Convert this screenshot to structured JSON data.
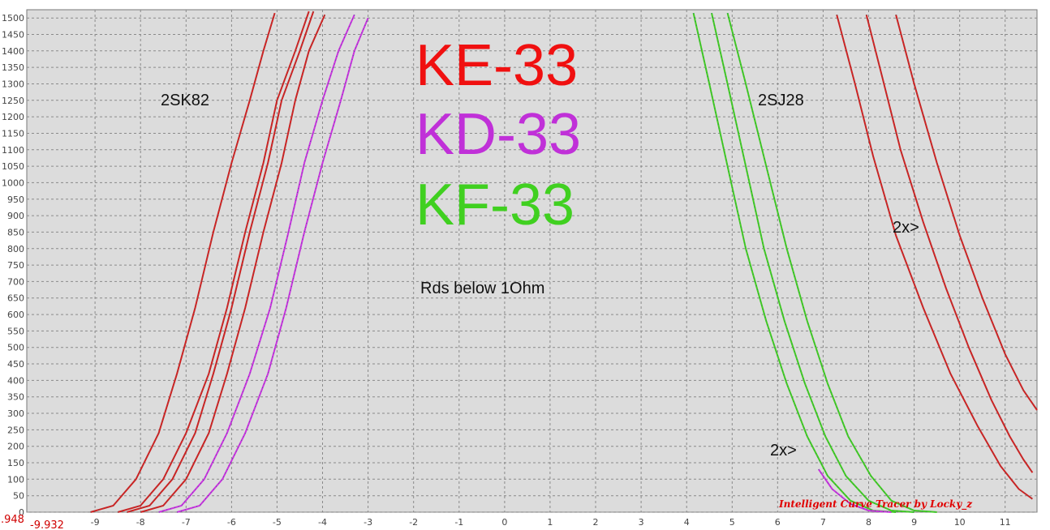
{
  "chart_data": {
    "type": "line",
    "title": "",
    "xlabel": "",
    "ylabel": "",
    "xlim": [
      -10.5,
      11.7
    ],
    "ylim": [
      0,
      1525
    ],
    "grid": true,
    "x_ticks": [
      -9,
      -8,
      -7,
      -6,
      -5,
      -4,
      -3,
      -2,
      -1,
      0,
      1,
      2,
      3,
      4,
      5,
      6,
      7,
      8,
      9,
      10,
      11
    ],
    "y_ticks": [
      0,
      50,
      100,
      150,
      200,
      250,
      300,
      350,
      400,
      450,
      500,
      550,
      600,
      650,
      700,
      750,
      800,
      850,
      900,
      950,
      1000,
      1050,
      1100,
      1150,
      1200,
      1250,
      1300,
      1350,
      1400,
      1450,
      1500
    ],
    "corner_labels": {
      "y_origin": ".948",
      "x_origin": "-9.932"
    },
    "legend": [
      {
        "name": "KE-33",
        "color": "#f01010"
      },
      {
        "name": "KD-33",
        "color": "#c030d8"
      },
      {
        "name": "KF-33",
        "color": "#40d020"
      }
    ],
    "annotations": {
      "device_left": "2SK82",
      "device_right": "2SJ28",
      "note": "Rds  below 1Ohm",
      "scale_mark_1": "2x>",
      "scale_mark_2": "2x>",
      "credit": "Intelligent Curve Tracer by Locky_z"
    },
    "series": [
      {
        "color": "#d42020",
        "x": [
          -9.1,
          -8.6,
          -8.1,
          -7.6,
          -7.2,
          -6.8,
          -6.4,
          -6.0,
          -5.6,
          -5.3,
          -5.05
        ],
        "y": [
          0,
          20,
          100,
          240,
          420,
          620,
          850,
          1060,
          1250,
          1400,
          1515
        ]
      },
      {
        "color": "#d42020",
        "x": [
          -8.5,
          -8.0,
          -7.5,
          -7.0,
          -6.5,
          -6.1,
          -5.7,
          -5.3,
          -5.0,
          -4.6,
          -4.3
        ],
        "y": [
          0,
          20,
          100,
          240,
          420,
          620,
          850,
          1060,
          1250,
          1400,
          1520
        ]
      },
      {
        "color": "#d42020",
        "x": [
          -8.3,
          -7.8,
          -7.3,
          -6.8,
          -6.4,
          -6.0,
          -5.6,
          -5.2,
          -4.9,
          -4.5,
          -4.2
        ],
        "y": [
          0,
          20,
          100,
          240,
          420,
          620,
          850,
          1060,
          1250,
          1400,
          1520
        ]
      },
      {
        "color": "#d42020",
        "x": [
          -8.0,
          -7.5,
          -7.0,
          -6.5,
          -6.1,
          -5.7,
          -5.3,
          -4.9,
          -4.6,
          -4.3,
          -3.95
        ],
        "y": [
          0,
          20,
          100,
          240,
          420,
          620,
          850,
          1060,
          1250,
          1400,
          1510
        ]
      },
      {
        "color": "#cc33e0",
        "x": [
          -7.6,
          -7.1,
          -6.6,
          -6.1,
          -5.6,
          -5.15,
          -4.75,
          -4.4,
          -4.0,
          -3.65,
          -3.3
        ],
        "y": [
          0,
          20,
          100,
          240,
          420,
          620,
          850,
          1060,
          1250,
          1400,
          1510
        ]
      },
      {
        "color": "#cc33e0",
        "x": [
          -7.2,
          -6.7,
          -6.2,
          -5.7,
          -5.2,
          -4.8,
          -4.4,
          -4.0,
          -3.6,
          -3.3,
          -3.0
        ],
        "y": [
          0,
          20,
          100,
          240,
          420,
          620,
          850,
          1060,
          1250,
          1400,
          1500
        ]
      },
      {
        "color": "#44cc22",
        "x": [
          4.15,
          4.5,
          4.9,
          5.3,
          5.75,
          6.2,
          6.65,
          7.1,
          7.6,
          8.1,
          8.6
        ],
        "y": [
          1515,
          1300,
          1050,
          800,
          580,
          390,
          230,
          110,
          35,
          5,
          0
        ]
      },
      {
        "color": "#44cc22",
        "x": [
          4.55,
          4.9,
          5.3,
          5.7,
          6.15,
          6.6,
          7.05,
          7.5,
          8.0,
          8.5,
          9.0
        ],
        "y": [
          1515,
          1300,
          1050,
          800,
          580,
          390,
          230,
          110,
          35,
          5,
          0
        ]
      },
      {
        "color": "#44cc22",
        "x": [
          4.9,
          5.3,
          5.75,
          6.2,
          6.65,
          7.1,
          7.55,
          8.05,
          8.5,
          9.0,
          9.5
        ],
        "y": [
          1515,
          1300,
          1050,
          800,
          580,
          390,
          230,
          110,
          35,
          5,
          0
        ]
      },
      {
        "color": "#cc33e0",
        "x": [
          6.9,
          7.2,
          7.6,
          8.0,
          8.5
        ],
        "y": [
          130,
          70,
          25,
          5,
          0
        ]
      },
      {
        "color": "#d42020",
        "x": [
          7.3,
          7.7,
          8.1,
          8.6,
          9.2,
          9.8,
          10.4,
          10.9,
          11.3,
          11.6
        ],
        "y": [
          1510,
          1300,
          1080,
          840,
          620,
          420,
          260,
          140,
          70,
          40
        ]
      },
      {
        "color": "#d42020",
        "x": [
          7.95,
          8.3,
          8.7,
          9.2,
          9.7,
          10.2,
          10.7,
          11.1,
          11.4,
          11.6
        ],
        "y": [
          1510,
          1320,
          1100,
          880,
          680,
          500,
          340,
          230,
          160,
          120
        ]
      },
      {
        "color": "#d42020",
        "x": [
          8.6,
          9.0,
          9.5,
          10.0,
          10.5,
          11.0,
          11.4,
          11.7
        ],
        "y": [
          1510,
          1300,
          1060,
          840,
          650,
          480,
          370,
          310
        ]
      }
    ]
  }
}
